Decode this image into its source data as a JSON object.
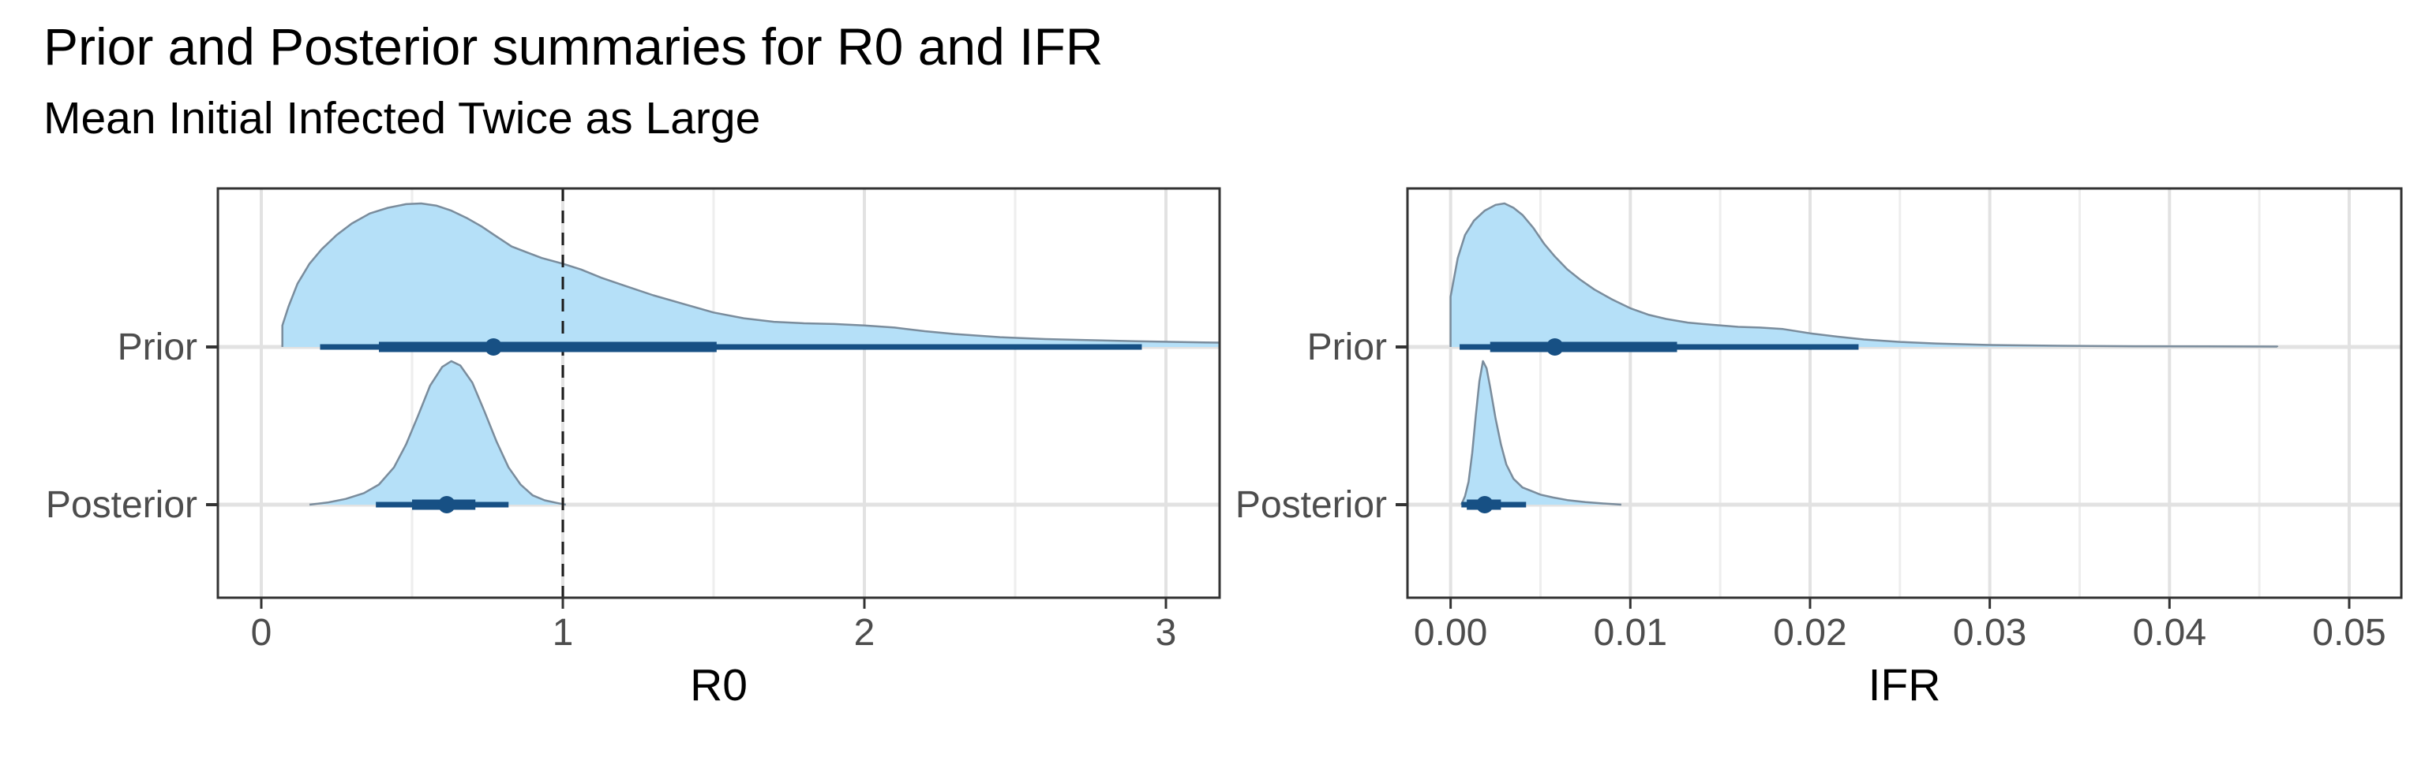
{
  "title": "Prior and Posterior summaries for R0 and IFR",
  "subtitle": "Mean Initial Infected Twice as Large",
  "colors": {
    "slab_fill": "#b5e0f8",
    "slab_stroke": "#7a8c9c",
    "interval": "#175084",
    "gridline_major": "#e2e2e2",
    "gridline_minor": "#eeeeee",
    "panel_border": "#333333",
    "axis_text": "#4d4d4d",
    "axis_title": "#000000",
    "reference_line": "#1a1a1a",
    "background": "#ffffff"
  },
  "chart_data": [
    {
      "type": "area",
      "panel": "R0",
      "xlabel": "R0",
      "x_ticks": [
        0,
        1,
        2,
        3
      ],
      "x_tick_labels": [
        "0",
        "1",
        "2",
        "3"
      ],
      "x_minor_ticks": [
        0.5,
        1.5,
        2.5
      ],
      "xlim": [
        -0.144,
        3.178
      ],
      "categories": [
        "Prior",
        "Posterior"
      ],
      "reference_line_x": 1,
      "legend": "none",
      "grid": "on",
      "series": [
        {
          "name": "Prior",
          "density": [
            [
              0.07,
              0
            ],
            [
              0.07,
              0.15
            ],
            [
              0.09,
              0.28
            ],
            [
              0.12,
              0.44
            ],
            [
              0.16,
              0.58
            ],
            [
              0.2,
              0.68
            ],
            [
              0.25,
              0.78
            ],
            [
              0.3,
              0.86
            ],
            [
              0.36,
              0.93
            ],
            [
              0.42,
              0.97
            ],
            [
              0.48,
              0.995
            ],
            [
              0.53,
              1.0
            ],
            [
              0.58,
              0.985
            ],
            [
              0.63,
              0.95
            ],
            [
              0.68,
              0.9
            ],
            [
              0.73,
              0.84
            ],
            [
              0.78,
              0.77
            ],
            [
              0.83,
              0.7
            ],
            [
              0.88,
              0.66
            ],
            [
              0.93,
              0.62
            ],
            [
              1.0,
              0.58
            ],
            [
              1.06,
              0.54
            ],
            [
              1.13,
              0.48
            ],
            [
              1.2,
              0.43
            ],
            [
              1.3,
              0.36
            ],
            [
              1.4,
              0.3
            ],
            [
              1.5,
              0.24
            ],
            [
              1.6,
              0.2
            ],
            [
              1.7,
              0.175
            ],
            [
              1.8,
              0.165
            ],
            [
              1.9,
              0.16
            ],
            [
              2.0,
              0.15
            ],
            [
              2.1,
              0.135
            ],
            [
              2.2,
              0.11
            ],
            [
              2.3,
              0.09
            ],
            [
              2.45,
              0.068
            ],
            [
              2.6,
              0.055
            ],
            [
              2.75,
              0.047
            ],
            [
              2.9,
              0.04
            ],
            [
              3.05,
              0.034
            ],
            [
              3.178,
              0.03
            ]
          ],
          "interval_95": [
            0.195,
            2.92
          ],
          "interval_50": [
            0.39,
            1.51
          ],
          "median": 0.77
        },
        {
          "name": "Posterior",
          "density": [
            [
              0.16,
              0
            ],
            [
              0.22,
              0.015
            ],
            [
              0.28,
              0.04
            ],
            [
              0.34,
              0.08
            ],
            [
              0.39,
              0.14
            ],
            [
              0.44,
              0.26
            ],
            [
              0.48,
              0.42
            ],
            [
              0.52,
              0.62
            ],
            [
              0.56,
              0.83
            ],
            [
              0.6,
              0.96
            ],
            [
              0.63,
              1.0
            ],
            [
              0.66,
              0.97
            ],
            [
              0.7,
              0.85
            ],
            [
              0.74,
              0.65
            ],
            [
              0.78,
              0.44
            ],
            [
              0.82,
              0.26
            ],
            [
              0.86,
              0.14
            ],
            [
              0.9,
              0.065
            ],
            [
              0.94,
              0.03
            ],
            [
              0.98,
              0.012
            ],
            [
              1.01,
              0
            ]
          ],
          "interval_95": [
            0.38,
            0.82
          ],
          "interval_50": [
            0.5,
            0.71
          ],
          "median": 0.615
        }
      ]
    },
    {
      "type": "area",
      "panel": "IFR",
      "xlabel": "IFR",
      "x_ticks": [
        0,
        0.01,
        0.02,
        0.03,
        0.04,
        0.05
      ],
      "x_tick_labels": [
        "0.00",
        "0.01",
        "0.02",
        "0.03",
        "0.04",
        "0.05"
      ],
      "x_minor_ticks": [
        0.005,
        0.015,
        0.025,
        0.035,
        0.045
      ],
      "xlim": [
        -0.0024,
        0.0529
      ],
      "categories": [
        "Prior",
        "Posterior"
      ],
      "reference_line_x": null,
      "legend": "none",
      "grid": "on",
      "series": [
        {
          "name": "Prior",
          "density": [
            [
              0.0,
              0
            ],
            [
              0.0,
              0.35
            ],
            [
              0.0004,
              0.62
            ],
            [
              0.0008,
              0.78
            ],
            [
              0.0013,
              0.88
            ],
            [
              0.0019,
              0.95
            ],
            [
              0.0025,
              0.99
            ],
            [
              0.003,
              1.0
            ],
            [
              0.0035,
              0.97
            ],
            [
              0.004,
              0.92
            ],
            [
              0.0046,
              0.83
            ],
            [
              0.0052,
              0.72
            ],
            [
              0.0058,
              0.63
            ],
            [
              0.0065,
              0.54
            ],
            [
              0.0072,
              0.47
            ],
            [
              0.008,
              0.4
            ],
            [
              0.009,
              0.33
            ],
            [
              0.01,
              0.27
            ],
            [
              0.011,
              0.225
            ],
            [
              0.012,
              0.195
            ],
            [
              0.0132,
              0.17
            ],
            [
              0.0145,
              0.155
            ],
            [
              0.016,
              0.14
            ],
            [
              0.0172,
              0.135
            ],
            [
              0.0185,
              0.125
            ],
            [
              0.02,
              0.095
            ],
            [
              0.0215,
              0.072
            ],
            [
              0.023,
              0.052
            ],
            [
              0.025,
              0.035
            ],
            [
              0.027,
              0.024
            ],
            [
              0.03,
              0.014
            ],
            [
              0.034,
              0.008
            ],
            [
              0.038,
              0.005
            ],
            [
              0.042,
              0.004
            ],
            [
              0.046,
              0.003
            ],
            [
              0.046,
              0
            ]
          ],
          "interval_95": [
            0.0005,
            0.0227
          ],
          "interval_50": [
            0.0022,
            0.0126
          ],
          "median": 0.0058
        },
        {
          "name": "Posterior",
          "density": [
            [
              0.0006,
              0
            ],
            [
              0.0008,
              0.06
            ],
            [
              0.001,
              0.16
            ],
            [
              0.0012,
              0.36
            ],
            [
              0.0014,
              0.62
            ],
            [
              0.0016,
              0.86
            ],
            [
              0.0018,
              1.0
            ],
            [
              0.002,
              0.95
            ],
            [
              0.0022,
              0.82
            ],
            [
              0.0025,
              0.6
            ],
            [
              0.0028,
              0.42
            ],
            [
              0.0031,
              0.28
            ],
            [
              0.0035,
              0.18
            ],
            [
              0.004,
              0.12
            ],
            [
              0.0045,
              0.095
            ],
            [
              0.005,
              0.07
            ],
            [
              0.0057,
              0.05
            ],
            [
              0.0065,
              0.032
            ],
            [
              0.0075,
              0.018
            ],
            [
              0.0085,
              0.008
            ],
            [
              0.0095,
              0
            ]
          ],
          "interval_95": [
            0.0006,
            0.0042
          ],
          "interval_50": [
            0.0009,
            0.0028
          ],
          "median": 0.0019
        }
      ]
    }
  ]
}
